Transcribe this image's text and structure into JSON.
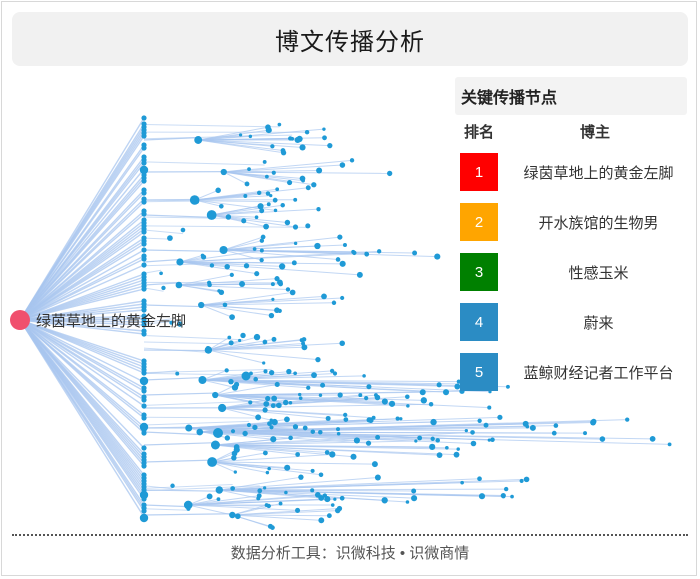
{
  "title": "博文传播分析",
  "root": {
    "label": "绿茵草地上的黄金左脚"
  },
  "legend": {
    "title": "关键传播节点",
    "col_rank": "排名",
    "col_name": "博主",
    "items": [
      {
        "rank": "1",
        "name": "绿茵草地上的黄金左脚",
        "color": "#ff0000"
      },
      {
        "rank": "2",
        "name": "开水族馆的生物男",
        "color": "#ffa500"
      },
      {
        "rank": "3",
        "name": "性感玉米",
        "color": "#008000"
      },
      {
        "rank": "4",
        "name": "蔚来",
        "color": "#2b8cc4"
      },
      {
        "rank": "5",
        "name": "蓝鲸财经记者工作平台",
        "color": "#2b8cc4"
      }
    ]
  },
  "colors": {
    "edge": "#a8c6ef",
    "node": "#1f9ad6",
    "root": "#f0506e"
  },
  "footer": "数据分析工具：识微科技 • 识微商情"
}
